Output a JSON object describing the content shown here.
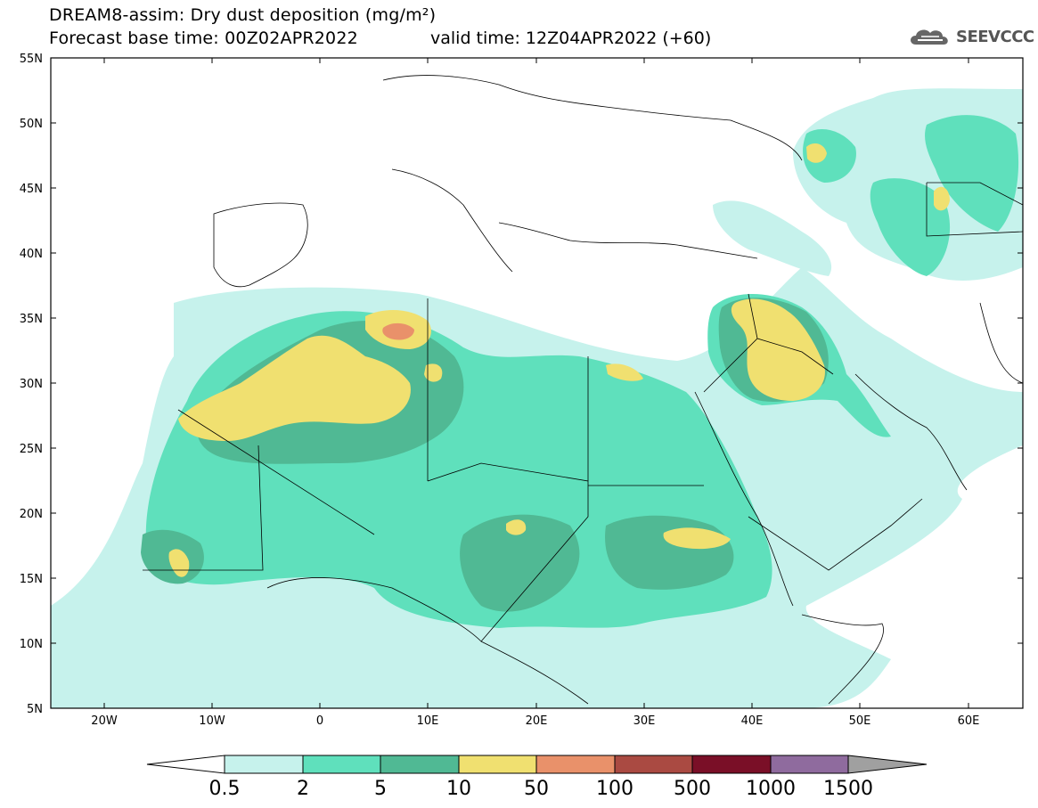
{
  "header": {
    "title": "DREAM8-assim: Dry dust deposition (mg/m²)",
    "base_time": "Forecast base time: 00Z02APR2022",
    "valid_time": "valid time: 12Z04APR2022 (+60)",
    "logo_text": "SEEVCCC",
    "logo_icon": "cloud-logo-icon"
  },
  "map": {
    "projection": "lat-lon",
    "lon_range": [
      -25,
      65
    ],
    "lat_range": [
      5,
      55
    ],
    "lat_labels": [
      "55N",
      "50N",
      "45N",
      "40N",
      "35N",
      "30N",
      "25N",
      "20N",
      "15N",
      "10N",
      "5N"
    ],
    "lon_labels": [
      "20W",
      "10W",
      "0",
      "10E",
      "20E",
      "30E",
      "40E",
      "50E",
      "60E"
    ],
    "background": "#ffffff"
  },
  "colorbar": {
    "labels": [
      "0.5",
      "2",
      "5",
      "10",
      "50",
      "100",
      "500",
      "1000",
      "1500"
    ],
    "colors": [
      "#c6f2ec",
      "#5fe0bc",
      "#50b994",
      "#f0e070",
      "#e9916a",
      "#aa4a42",
      "#7a0f27",
      "#8f6b9e",
      "#a0a0a0"
    ]
  }
}
